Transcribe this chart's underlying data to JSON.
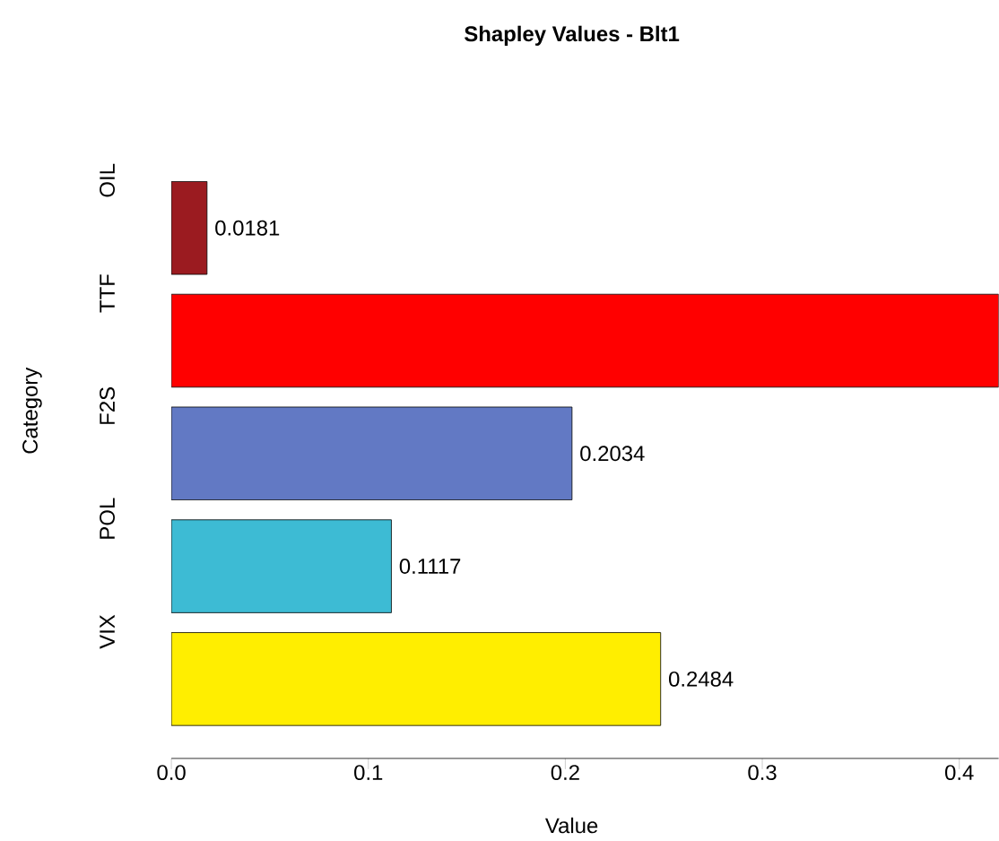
{
  "chart_data": {
    "type": "bar",
    "orientation": "horizontal",
    "title": "Shapley Values - Blt1",
    "xlabel": "Value",
    "ylabel": "Category",
    "categories": [
      "OIL",
      "TTF",
      "F2S",
      "POL",
      "VIX"
    ],
    "values": [
      0.0181,
      0.42,
      0.2034,
      0.1117,
      0.2484
    ],
    "value_labels": [
      "0.0181",
      null,
      "0.2034",
      "0.1117",
      "0.2484"
    ],
    "colors": [
      "#9b1b20",
      "#ff0000",
      "#6279c4",
      "#3dbbd4",
      "#ffee00"
    ],
    "xlim": [
      0,
      0.42
    ],
    "xticks": [
      {
        "value": 0,
        "label": "0.0"
      },
      {
        "value": 0.1,
        "label": "0.1"
      },
      {
        "value": 0.2,
        "label": "0.2"
      },
      {
        "value": 0.3,
        "label": "0.3"
      },
      {
        "value": 0.4,
        "label": "0.4"
      }
    ]
  }
}
